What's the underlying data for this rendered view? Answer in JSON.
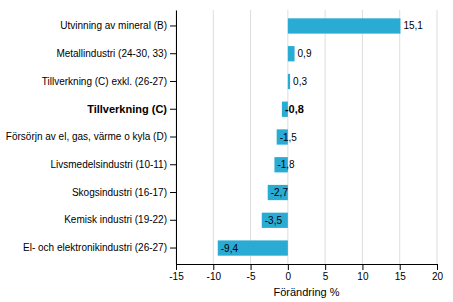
{
  "chart_data": {
    "type": "bar",
    "orientation": "horizontal",
    "categories": [
      "El- och elektronikindustri (26-27)",
      "Kemisk industri (19-22)",
      "Skogsindustri (16-17)",
      "Livsmedelsindustri (10-11)",
      "Försörjn av el, gas, värme o kyla (D)",
      "Tillverkning (C)",
      "Tillverkning (C) exkl. (26-27)",
      "Metallindustri (24-30, 33)",
      "Utvinning av mineral (B)"
    ],
    "values": [
      -9.4,
      -3.5,
      -2.7,
      -1.8,
      -1.5,
      -0.8,
      0.3,
      0.9,
      15.1
    ],
    "value_labels": [
      "-9,4",
      "-3,5",
      "-2,7",
      "-1,8",
      "-1,5",
      "-0,8",
      "0,3",
      "0,9",
      "15,1"
    ],
    "data_labels": true,
    "color": "#29ABD4",
    "xlabel": "Förändring %",
    "xlim": [
      -15,
      20
    ],
    "xticks": [
      -15,
      -10,
      -5,
      0,
      5,
      10,
      15,
      20
    ],
    "grid": true
  }
}
